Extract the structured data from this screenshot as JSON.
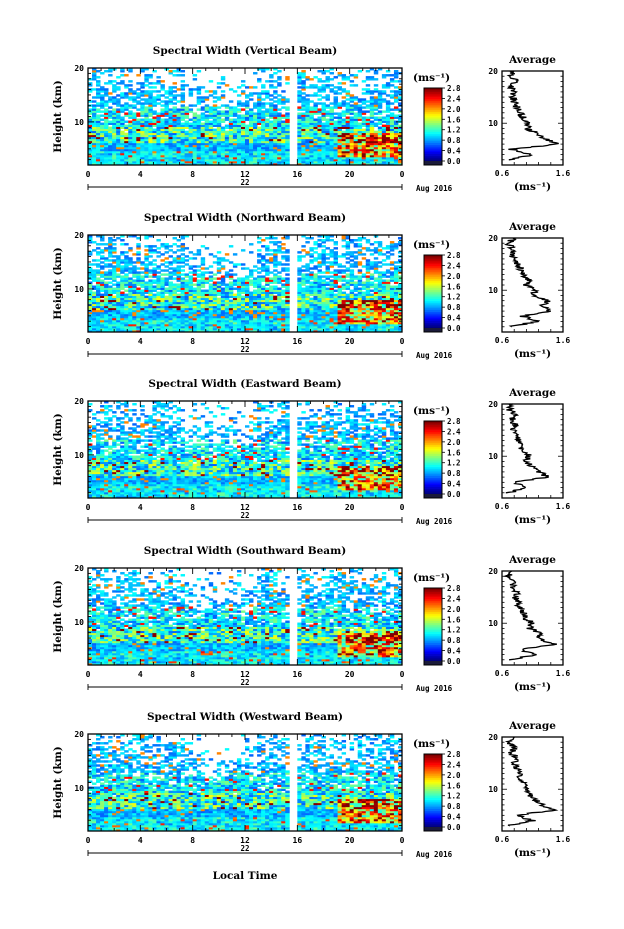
{
  "figure": {
    "xlabel": "Local Time",
    "date_label": "Aug 2016",
    "day_label": "22"
  },
  "chart_data": [
    {
      "type": "heatmap",
      "title": "Spectral Width (Vertical Beam)",
      "ylabel": "Height (km)",
      "x_ticks": [
        "0",
        "4",
        "8",
        "12",
        "16",
        "20",
        "0"
      ],
      "y_ticks": [
        "20",
        "10"
      ],
      "xlim": [
        0,
        24
      ],
      "ylim": [
        2,
        20
      ],
      "colorbar": {
        "unit": "(ms⁻¹)",
        "ticks": [
          "2.8",
          "2.4",
          "2.0",
          "1.6",
          "1.2",
          "0.8",
          "0.4",
          "0.0"
        ],
        "range": [
          0,
          2.8
        ]
      },
      "data_gap": [
        15.4,
        15.9
      ],
      "average_profile": {
        "title": "Average",
        "xlabel": "(ms⁻¹)",
        "x_ticks": [
          "0.6",
          "1.6"
        ],
        "y_ticks": [
          "20",
          "10"
        ],
        "xlim": [
          0.6,
          1.6
        ],
        "height": [
          3,
          4,
          5,
          6,
          7,
          8,
          9,
          10,
          11,
          12,
          13,
          14,
          15,
          16,
          17,
          18,
          19,
          20
        ],
        "width": [
          0.7,
          1.1,
          0.75,
          1.5,
          1.3,
          1.2,
          1.0,
          1.05,
          0.95,
          0.9,
          0.85,
          0.8,
          0.78,
          0.8,
          0.75,
          0.85,
          0.72,
          0.8
        ]
      }
    },
    {
      "type": "heatmap",
      "title": "Spectral Width (Northward Beam)",
      "ylabel": "Height (km)",
      "x_ticks": [
        "0",
        "4",
        "8",
        "12",
        "16",
        "20",
        "0"
      ],
      "y_ticks": [
        "20",
        "10"
      ],
      "xlim": [
        0,
        24
      ],
      "ylim": [
        2,
        20
      ],
      "colorbar": {
        "unit": "(ms⁻¹)",
        "ticks": [
          "2.8",
          "2.4",
          "2.0",
          "1.6",
          "1.2",
          "0.8",
          "0.4",
          "0.0"
        ],
        "range": [
          0,
          2.8
        ]
      },
      "data_gap": [
        15.4,
        15.9
      ],
      "average_profile": {
        "title": "Average",
        "xlabel": "(ms⁻¹)",
        "x_ticks": [
          "0.6",
          "1.6"
        ],
        "y_ticks": [
          "20",
          "10"
        ],
        "xlim": [
          0.6,
          1.6
        ],
        "height": [
          3,
          4,
          5,
          6,
          7,
          8,
          9,
          10,
          11,
          12,
          13,
          14,
          15,
          16,
          17,
          18,
          19,
          20
        ],
        "width": [
          0.72,
          1.2,
          0.95,
          1.4,
          1.25,
          1.35,
          1.1,
          1.15,
          1.0,
          1.05,
          0.95,
          0.9,
          0.85,
          0.8,
          0.75,
          0.78,
          0.7,
          0.8
        ]
      }
    },
    {
      "type": "heatmap",
      "title": "Spectral Width (Eastward Beam)",
      "ylabel": "Height (km)",
      "x_ticks": [
        "0",
        "4",
        "8",
        "12",
        "16",
        "20",
        "0"
      ],
      "y_ticks": [
        "20",
        "10"
      ],
      "xlim": [
        0,
        24
      ],
      "ylim": [
        2,
        20
      ],
      "colorbar": {
        "unit": "(ms⁻¹)",
        "ticks": [
          "2.8",
          "2.4",
          "2.0",
          "1.6",
          "1.2",
          "0.8",
          "0.4",
          "0.0"
        ],
        "range": [
          0,
          2.8
        ]
      },
      "data_gap": [
        15.4,
        15.9
      ],
      "average_profile": {
        "title": "Average",
        "xlabel": "(ms⁻¹)",
        "x_ticks": [
          "0.6",
          "1.6"
        ],
        "y_ticks": [
          "20",
          "10"
        ],
        "xlim": [
          0.6,
          1.6
        ],
        "height": [
          3,
          4,
          5,
          6,
          7,
          8,
          9,
          10,
          11,
          12,
          13,
          14,
          15,
          16,
          17,
          18,
          19,
          20
        ],
        "width": [
          0.7,
          1.0,
          0.8,
          1.35,
          1.2,
          1.1,
          1.0,
          1.05,
          0.95,
          0.9,
          0.88,
          0.85,
          0.8,
          0.82,
          0.76,
          0.8,
          0.72,
          0.78
        ]
      }
    },
    {
      "type": "heatmap",
      "title": "Spectral Width (Southward Beam)",
      "ylabel": "Height (km)",
      "x_ticks": [
        "0",
        "4",
        "8",
        "12",
        "16",
        "20",
        "0"
      ],
      "y_ticks": [
        "20",
        "10"
      ],
      "xlim": [
        0,
        24
      ],
      "ylim": [
        2,
        20
      ],
      "colorbar": {
        "unit": "(ms⁻¹)",
        "ticks": [
          "2.8",
          "2.4",
          "2.0",
          "1.6",
          "1.2",
          "0.8",
          "0.4",
          "0.0"
        ],
        "range": [
          0,
          2.8
        ]
      },
      "data_gap": [
        15.4,
        15.9
      ],
      "average_profile": {
        "title": "Average",
        "xlabel": "(ms⁻¹)",
        "x_ticks": [
          "0.6",
          "1.6"
        ],
        "y_ticks": [
          "20",
          "10"
        ],
        "xlim": [
          0.6,
          1.6
        ],
        "height": [
          3,
          4,
          5,
          6,
          7,
          8,
          9,
          10,
          11,
          12,
          13,
          14,
          15,
          16,
          17,
          18,
          19,
          20
        ],
        "width": [
          0.72,
          1.15,
          0.9,
          1.45,
          1.2,
          1.25,
          1.05,
          1.1,
          0.98,
          0.95,
          0.9,
          0.86,
          0.82,
          0.85,
          0.78,
          0.8,
          0.7,
          0.76
        ]
      }
    },
    {
      "type": "heatmap",
      "title": "Spectral Width (Westward Beam)",
      "ylabel": "Height (km)",
      "x_ticks": [
        "0",
        "4",
        "8",
        "12",
        "16",
        "20",
        "0"
      ],
      "y_ticks": [
        "20",
        "10"
      ],
      "xlim": [
        0,
        24
      ],
      "ylim": [
        2,
        20
      ],
      "colorbar": {
        "unit": "(ms⁻¹)",
        "ticks": [
          "2.8",
          "2.4",
          "2.0",
          "1.6",
          "1.2",
          "0.8",
          "0.4",
          "0.0"
        ],
        "range": [
          0,
          2.8
        ]
      },
      "data_gap": [
        15.4,
        15.9
      ],
      "average_profile": {
        "title": "Average",
        "xlabel": "(ms⁻¹)",
        "x_ticks": [
          "0.6",
          "1.6"
        ],
        "y_ticks": [
          "20",
          "10"
        ],
        "xlim": [
          0.6,
          1.6
        ],
        "height": [
          3,
          4,
          5,
          6,
          7,
          8,
          9,
          10,
          11,
          12,
          13,
          14,
          15,
          16,
          17,
          18,
          19,
          20
        ],
        "width": [
          0.7,
          1.1,
          0.85,
          1.45,
          1.25,
          1.15,
          1.05,
          1.0,
          0.95,
          0.92,
          0.88,
          0.84,
          0.8,
          0.83,
          0.76,
          0.8,
          0.72,
          0.78
        ]
      }
    }
  ]
}
